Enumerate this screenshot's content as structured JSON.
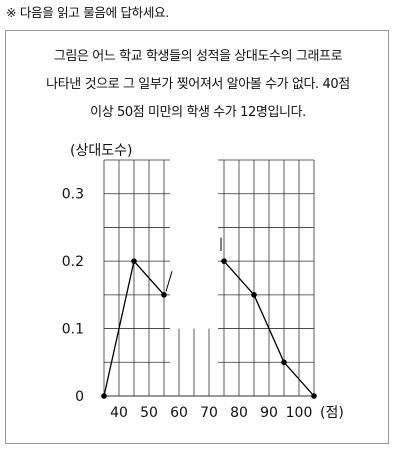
{
  "instruction": "※ 다음을 읽고 물음에 답하세요.",
  "problem": {
    "lines": [
      "그림은 어느 학교 학생들의 성적을 상대도수의 그래프로",
      "나타낸 것으로 그 일부가 찢어져서 알아볼 수가 없다. 40점",
      "이상 50점 미만의 학생 수가 12명입니다."
    ]
  },
  "chart_data": {
    "type": "line",
    "ylabel": "(상대도수)",
    "xlabel": "(점)",
    "x_ticks": [
      40,
      50,
      60,
      70,
      80,
      90,
      100
    ],
    "y_ticks": [
      0,
      0.1,
      0.2,
      0.3
    ],
    "y_tick_labels": [
      "0",
      "0.1",
      "0.2",
      "0.3"
    ],
    "xlim": [
      35,
      105
    ],
    "ylim": [
      0,
      0.35
    ],
    "grid": true,
    "series": [
      {
        "x": [
          35,
          45,
          55
        ],
        "y": [
          0,
          0.2,
          0.15
        ]
      },
      {
        "x": [
          75,
          85,
          95,
          105
        ],
        "y": [
          0.2,
          0.15,
          0.05,
          0
        ]
      }
    ],
    "torn_section": {
      "x_range": [
        57,
        73
      ]
    },
    "colors": {
      "grid": "#333333",
      "line": "#000000",
      "point": "#000000"
    }
  }
}
